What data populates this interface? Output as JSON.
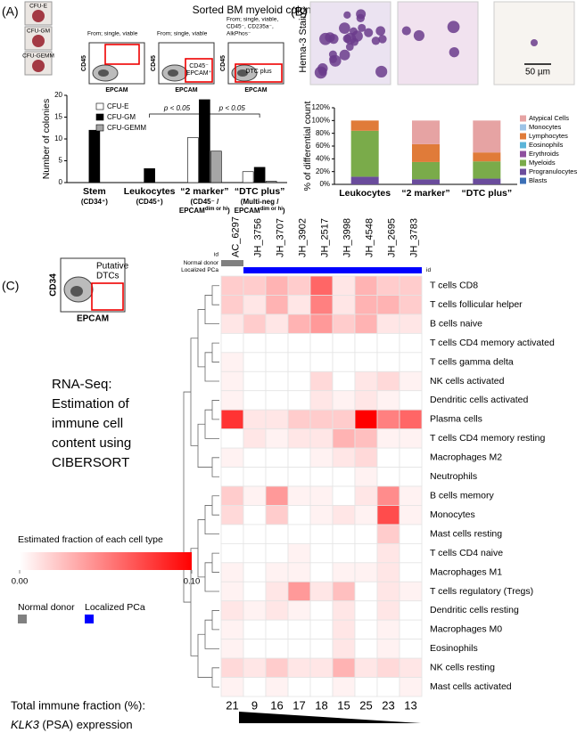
{
  "panel_labels": [
    "(A)",
    "(B)",
    "(C)"
  ],
  "panel_a": {
    "title": "Sorted BM myeloid colony formation",
    "colony_images": [
      "CFU-E",
      "CFU-GM",
      "CFU-GEMM"
    ],
    "flow_plots": [
      {
        "gating": [
          "From; single, viable"
        ],
        "x_axis": "EPCAM",
        "y_axis": "CD45"
      },
      {
        "gating": [
          "From; single, viable"
        ],
        "x_axis": "EPCAM",
        "y_axis": "CD45",
        "gate": [
          "CD45⁻",
          "EPCAM⁺"
        ]
      },
      {
        "gating": [
          "From; single, viable,",
          "CD45⁻, CD235a⁻,",
          "AlkPhos⁻"
        ],
        "x_axis": "EPCAM",
        "y_axis": "CD45",
        "gate": [
          "DTC plus"
        ]
      }
    ]
  },
  "panel_b": {
    "stain": "Hema-3 Stain",
    "scale_bar": "50 µm"
  },
  "panel_c": {
    "flow_plot": {
      "x_axis": "EPCAM",
      "y_axis": "CD34",
      "gate": [
        "Putative",
        "DTCs"
      ]
    },
    "description": [
      "RNA-Seq:",
      "Estimation of",
      "immune cell",
      "content using",
      "CIBERSORT"
    ],
    "total_label": "Total immune fraction (%):",
    "total_immune_fraction": [
      21,
      9,
      16,
      17,
      18,
      15,
      25,
      23,
      13
    ],
    "expression_label": [
      "KLK3",
      " (PSA) expression"
    ]
  },
  "chart_data": [
    {
      "type": "bar",
      "ylabel": "Number of colonies",
      "categories": [
        "Stem",
        "Leukocytes",
        "“2 marker”",
        "“DTC plus”"
      ],
      "category_notes": [
        [
          "(CD34⁺)"
        ],
        [
          "(CD45⁺)"
        ],
        [
          "(CD45⁻ /",
          [
            "EPCAM",
            "dim or hi",
            ")"
          ]
        ],
        [
          "(Multi-neg /",
          [
            "EPCAM",
            "dim or hi",
            ")"
          ]
        ]
      ],
      "series": [
        {
          "name": "CFU-E",
          "color": "#ffffff",
          "values": [
            0,
            0,
            10.3,
            2.5
          ]
        },
        {
          "name": "CFU-GM",
          "color": "#000000",
          "values": [
            12,
            3.2,
            19,
            3.5
          ]
        },
        {
          "name": "CFU-GEMM",
          "color": "#a6a6a6",
          "values": [
            0,
            0,
            7.2,
            0.3
          ]
        }
      ],
      "ylim": [
        0,
        20
      ],
      "yticks": [
        0,
        5,
        10,
        15,
        20
      ],
      "annotations": [
        "p < 0.05",
        "p < 0.05"
      ]
    },
    {
      "type": "stacked_bar",
      "ylabel": "% of differential count",
      "categories": [
        "Leukocytes",
        "“2 marker”",
        "“DTC plus”"
      ],
      "series": [
        {
          "name": "Atypical Cells",
          "color": "#e6a3a3",
          "values": [
            0,
            37,
            50
          ]
        },
        {
          "name": "Monocytes",
          "color": "#9dc3e6",
          "values": [
            0,
            0,
            0
          ]
        },
        {
          "name": "Lymphocytes",
          "color": "#e07b39",
          "values": [
            16,
            28,
            14
          ]
        },
        {
          "name": "Eosinophils",
          "color": "#5bb4d8",
          "values": [
            0,
            0,
            0
          ]
        },
        {
          "name": "Erythroids",
          "color": "#8e4f9e",
          "values": [
            0,
            0,
            0
          ]
        },
        {
          "name": "Myeloids",
          "color": "#7aab4a",
          "values": [
            72,
            27,
            27
          ]
        },
        {
          "name": "Progranulocytes",
          "color": "#6a4c9c",
          "values": [
            12,
            8,
            9
          ]
        },
        {
          "name": "Blasts",
          "color": "#3b6fb6",
          "values": [
            0,
            0,
            0
          ]
        }
      ],
      "ylim": [
        0,
        120
      ],
      "yticks": [
        {
          "value": 0,
          "label": "0%"
        },
        {
          "value": 20,
          "label": "20%"
        },
        {
          "value": 40,
          "label": "40%"
        },
        {
          "value": 60,
          "label": "60%"
        },
        {
          "value": 80,
          "label": "80%"
        },
        {
          "value": 100,
          "label": "100%"
        },
        {
          "value": 120,
          "label": "120%"
        }
      ]
    },
    {
      "type": "heatmap",
      "columns": [
        "AC_6297",
        "JH_3756",
        "JH_3707",
        "JH_3902",
        "JH_2517",
        "JH_3998",
        "JH_4548",
        "JH_2695",
        "JH_3783"
      ],
      "rows": [
        "T cells CD8",
        "T cells follicular helper",
        "B cells naive",
        "T cells CD4 memory activated",
        "T cells gamma delta",
        "NK cells activated",
        "Dendritic cells activated",
        "Plasma cells",
        "T cells CD4 memory resting",
        "Macrophages M2",
        "Neutrophils",
        "B cells memory",
        "Monocytes",
        "Mast cells resting",
        "T cells CD4 naive",
        "Macrophages M1",
        "T cells regulatory (Tregs)",
        "Dendritic cells resting",
        "Macrophages M0",
        "Eosinophils",
        "NK cells resting",
        "Mast cells activated"
      ],
      "values": [
        [
          0.02,
          0.02,
          0.03,
          0.02,
          0.06,
          0.01,
          0.03,
          0.02,
          0.02
        ],
        [
          0.02,
          0.01,
          0.03,
          0.01,
          0.05,
          0.01,
          0.03,
          0.03,
          0.02
        ],
        [
          0.01,
          0.02,
          0.01,
          0.03,
          0.04,
          0.02,
          0.03,
          0.01,
          0.01
        ],
        [
          0,
          0,
          0,
          0,
          0,
          0,
          0,
          0,
          0
        ],
        [
          0.005,
          0,
          0,
          0,
          0,
          0,
          0,
          0,
          0
        ],
        [
          0.005,
          0,
          0,
          0,
          0.015,
          0,
          0.01,
          0.015,
          0.005
        ],
        [
          0.005,
          0,
          0,
          0,
          0.01,
          0.005,
          0.01,
          0.005,
          0
        ],
        [
          0.08,
          0.01,
          0.01,
          0.02,
          0.02,
          0.02,
          0.1,
          0.05,
          0.06
        ],
        [
          0,
          0.01,
          0.005,
          0.01,
          0.01,
          0.03,
          0.025,
          0.005,
          0.005
        ],
        [
          0.005,
          0,
          0,
          0,
          0.005,
          0.01,
          0.015,
          0,
          0
        ],
        [
          0,
          0,
          0,
          0,
          0,
          0,
          0.005,
          0,
          0
        ],
        [
          0.02,
          0.005,
          0.04,
          0.005,
          0.005,
          0,
          0.01,
          0.045,
          0.005
        ],
        [
          0.015,
          0,
          0.02,
          0,
          0.005,
          0.01,
          0.005,
          0.07,
          0.005
        ],
        [
          0,
          0,
          0,
          0,
          0,
          0,
          0,
          0.02,
          0
        ],
        [
          0,
          0,
          0,
          0.005,
          0,
          0,
          0,
          0.01,
          0
        ],
        [
          0.005,
          0,
          0.005,
          0.005,
          0,
          0.005,
          0.005,
          0.01,
          0
        ],
        [
          0.005,
          0,
          0.01,
          0.04,
          0.01,
          0.025,
          0,
          0.01,
          0.005
        ],
        [
          0.01,
          0.005,
          0.01,
          0.005,
          0,
          0.01,
          0,
          0.01,
          0
        ],
        [
          0.005,
          0,
          0,
          0,
          0,
          0.01,
          0,
          0.005,
          0
        ],
        [
          0.005,
          0,
          0,
          0,
          0,
          0.01,
          0,
          0.005,
          0
        ],
        [
          0.015,
          0.01,
          0.02,
          0.01,
          0.01,
          0.03,
          0.01,
          0.015,
          0.01
        ],
        [
          0.005,
          0,
          0.005,
          0,
          0,
          0.005,
          0,
          0,
          0.005
        ]
      ],
      "zlim": [
        0,
        0.1
      ],
      "colors": [
        "#ffffff",
        "#ff0000"
      ],
      "colorbar_title": "Estimated fraction of each cell type",
      "colorbar_ticks": [
        {
          "value": 0,
          "label": "0.00"
        },
        {
          "value": 0.1,
          "label": "0.10"
        }
      ],
      "annotation_label": "id",
      "groups": [
        {
          "name": "Normal donor",
          "color": "#808080"
        },
        {
          "name": "Localized PCa",
          "color": "#0000ff"
        }
      ],
      "column_groups": [
        0,
        1,
        1,
        1,
        1,
        1,
        1,
        1,
        1
      ]
    }
  ]
}
